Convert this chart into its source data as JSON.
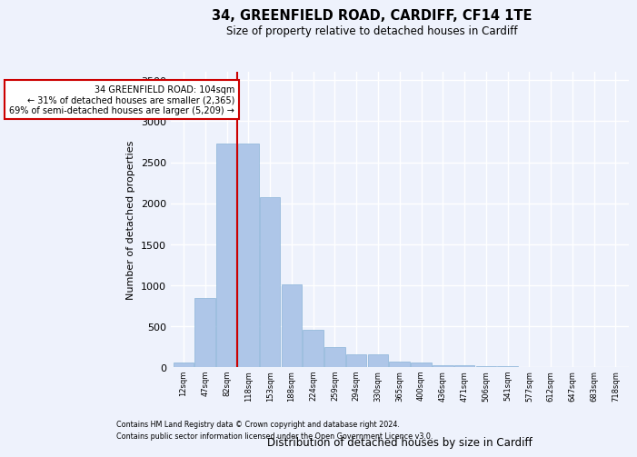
{
  "title": "34, GREENFIELD ROAD, CARDIFF, CF14 1TE",
  "subtitle": "Size of property relative to detached houses in Cardiff",
  "xlabel": "Distribution of detached houses by size in Cardiff",
  "ylabel": "Number of detached properties",
  "footnote1": "Contains HM Land Registry data © Crown copyright and database right 2024.",
  "footnote2": "Contains public sector information licensed under the Open Government Licence v3.0.",
  "annotation_line1": "34 GREENFIELD ROAD: 104sqm",
  "annotation_line2": "← 31% of detached houses are smaller (2,365)",
  "annotation_line3": "69% of semi-detached houses are larger (5,209) →",
  "categories": [
    "12sqm",
    "47sqm",
    "82sqm",
    "118sqm",
    "153sqm",
    "188sqm",
    "224sqm",
    "259sqm",
    "294sqm",
    "330sqm",
    "365sqm",
    "400sqm",
    "436sqm",
    "471sqm",
    "506sqm",
    "541sqm",
    "577sqm",
    "612sqm",
    "647sqm",
    "683sqm",
    "718sqm"
  ],
  "values": [
    55,
    850,
    2730,
    2730,
    2070,
    1010,
    460,
    250,
    160,
    160,
    65,
    55,
    30,
    25,
    15,
    10,
    5,
    5,
    3,
    2,
    1
  ],
  "bar_color": "#aec6e8",
  "bar_edge_color": "#8ab4d8",
  "marker_color": "#cc0000",
  "annotation_box_edge": "#cc0000",
  "background_color": "#eef2fc",
  "grid_color": "#ffffff",
  "ylim": [
    0,
    3600
  ],
  "yticks": [
    0,
    500,
    1000,
    1500,
    2000,
    2500,
    3000,
    3500
  ],
  "marker_bar_index": 3
}
